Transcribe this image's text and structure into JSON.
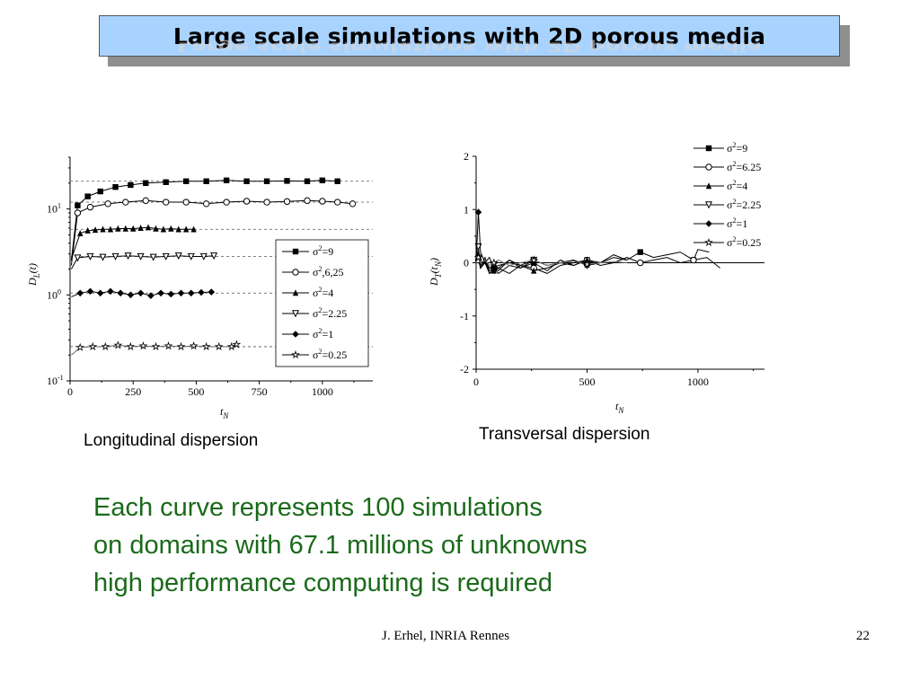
{
  "slide": {
    "title": "Large scale simulations with 2D porous media",
    "title_color": "#a9d3ff",
    "text_color": "#1a6a1a",
    "footer_author": "J. Erhel, INRIA Rennes",
    "page_number": "22",
    "caption_left": "Longitudinal dispersion",
    "caption_right": "Transversal dispersion",
    "lines": [
      "Each curve represents 100 simulations",
      "on domains with 67.1 millions of unknowns",
      "high performance computing is required"
    ]
  },
  "chart_data": [
    {
      "type": "line",
      "yscale": "log",
      "xlim": [
        0,
        1200
      ],
      "ylim": [
        0.1,
        40
      ],
      "xticks": [
        "0",
        "250",
        "500",
        "750",
        "1000"
      ],
      "yticks": [
        {
          "base": "10",
          "exp": "-1",
          "value": 0.1
        },
        {
          "base": "10",
          "exp": "0",
          "value": 1
        },
        {
          "base": "10",
          "exp": "1",
          "value": 10
        }
      ],
      "xlabel": {
        "main": "t",
        "sub": "N"
      },
      "ylabel": {
        "main": "D",
        "sub": "L",
        "arg": "(t)"
      },
      "reference_lines": [
        21,
        12,
        5.8,
        2.8,
        1.05,
        0.25
      ],
      "legend_position": "lower-right",
      "series": [
        {
          "name": "σ²=9",
          "marker": "square",
          "x": [
            5,
            30,
            70,
            120,
            180,
            240,
            300,
            380,
            460,
            540,
            620,
            700,
            780,
            860,
            940,
            1000,
            1060
          ],
          "y": [
            2.5,
            11,
            14,
            16,
            18,
            19,
            20,
            20.5,
            21,
            21,
            21.5,
            21,
            21,
            21.2,
            21,
            21.5,
            21
          ]
        },
        {
          "name": "σ²,6,25",
          "marker": "circle",
          "x": [
            5,
            30,
            80,
            150,
            220,
            300,
            380,
            460,
            540,
            620,
            700,
            780,
            860,
            940,
            1000,
            1060,
            1120
          ],
          "y": [
            2.2,
            9,
            10.5,
            11.5,
            12,
            12.5,
            12,
            12,
            11.5,
            12,
            12.3,
            12,
            12.2,
            12.5,
            12.3,
            12,
            11.5
          ]
        },
        {
          "name": "σ²=4",
          "marker": "triangle",
          "x": [
            5,
            40,
            70,
            100,
            130,
            160,
            190,
            220,
            250,
            280,
            310,
            340,
            370,
            400,
            430,
            460,
            490
          ],
          "y": [
            2.6,
            5.2,
            5.6,
            5.7,
            5.8,
            5.8,
            5.9,
            5.9,
            5.9,
            6.0,
            6.1,
            5.9,
            5.8,
            5.9,
            5.8,
            5.8,
            5.8
          ]
        },
        {
          "name": "σ²=2.25",
          "marker": "triangle-down",
          "x": [
            5,
            30,
            80,
            130,
            180,
            230,
            280,
            330,
            380,
            430,
            480,
            530,
            570
          ],
          "y": [
            2.0,
            2.7,
            2.8,
            2.75,
            2.8,
            2.85,
            2.8,
            2.75,
            2.8,
            2.85,
            2.8,
            2.8,
            2.85
          ]
        },
        {
          "name": "σ²=1",
          "marker": "diamond",
          "x": [
            5,
            40,
            80,
            120,
            160,
            200,
            240,
            280,
            320,
            360,
            400,
            440,
            480,
            520,
            560
          ],
          "y": [
            0.95,
            1.05,
            1.1,
            1.05,
            1.1,
            1.05,
            1.0,
            1.05,
            0.98,
            1.05,
            1.02,
            1.05,
            1.05,
            1.07,
            1.08
          ]
        },
        {
          "name": "σ²=0.25",
          "marker": "star",
          "x": [
            5,
            40,
            90,
            140,
            190,
            240,
            290,
            340,
            390,
            440,
            490,
            540,
            590,
            640,
            660
          ],
          "y": [
            0.2,
            0.245,
            0.25,
            0.25,
            0.26,
            0.25,
            0.255,
            0.25,
            0.255,
            0.25,
            0.255,
            0.25,
            0.25,
            0.25,
            0.265
          ]
        }
      ]
    },
    {
      "type": "line",
      "xlim": [
        0,
        1300
      ],
      "ylim": [
        -2,
        2
      ],
      "xticks": [
        "0",
        "500",
        "1000"
      ],
      "yticks": [
        "2",
        "1",
        "0",
        "-1",
        "-2"
      ],
      "xlabel": {
        "main": "t",
        "sub": "N"
      },
      "ylabel": {
        "main": "D",
        "sub": "T",
        "arg": "(t",
        "arg_sub": "N",
        "arg_close": ")"
      },
      "reference_lines": [
        0
      ],
      "legend_position": "top-right",
      "series": [
        {
          "name": "σ²=9",
          "marker": "square",
          "x": [
            0,
            10,
            20,
            40,
            60,
            80,
            100,
            150,
            200,
            260,
            320,
            380,
            440,
            500,
            560,
            620,
            680,
            740,
            800,
            860,
            920,
            980,
            1000,
            1050
          ],
          "y": [
            0,
            0.1,
            -0.05,
            0.1,
            -0.15,
            -0.1,
            -0.2,
            -0.05,
            -0.1,
            0.0,
            -0.15,
            0.05,
            -0.05,
            0.05,
            0.0,
            0.15,
            0.05,
            0.2,
            0.1,
            0.15,
            0.2,
            0.05,
            0.25,
            0.2
          ]
        },
        {
          "name": "σ²=6.25",
          "marker": "circle",
          "x": [
            0,
            10,
            20,
            40,
            60,
            80,
            100,
            150,
            200,
            260,
            320,
            380,
            440,
            500,
            560,
            620,
            680,
            740,
            800,
            860,
            920,
            980,
            1040,
            1100
          ],
          "y": [
            0,
            0.05,
            -0.1,
            0.0,
            -0.2,
            -0.1,
            -0.15,
            0.05,
            -0.05,
            -0.1,
            -0.2,
            -0.05,
            0.0,
            0.05,
            -0.05,
            0.0,
            0.1,
            0.0,
            0.05,
            0.1,
            0.0,
            0.05,
            0.1,
            -0.1
          ]
        },
        {
          "name": "σ²=4",
          "marker": "triangle",
          "x": [
            0,
            10,
            20,
            40,
            60,
            80,
            100,
            150,
            200,
            260,
            320,
            380,
            440,
            500,
            560,
            620,
            680
          ],
          "y": [
            0,
            0.15,
            -0.1,
            0.05,
            -0.2,
            -0.15,
            -0.1,
            -0.2,
            -0.05,
            -0.15,
            -0.1,
            0.0,
            -0.05,
            0.05,
            0.0,
            0.1,
            0.05
          ]
        },
        {
          "name": "σ²=2.25",
          "marker": "triangle-down",
          "x": [
            0,
            10,
            20,
            40,
            60,
            80,
            100,
            150,
            200,
            260,
            320,
            380,
            440,
            500,
            560
          ],
          "y": [
            0,
            0.3,
            -0.1,
            0.05,
            -0.1,
            -0.05,
            -0.1,
            0.05,
            -0.1,
            0.05,
            -0.05,
            0.0,
            0.05,
            -0.05,
            0.0
          ]
        },
        {
          "name": "σ²=1",
          "marker": "diamond",
          "x": [
            0,
            10,
            20,
            40,
            60,
            80,
            100,
            150,
            200,
            260,
            320,
            380,
            440,
            500,
            560
          ],
          "y": [
            0,
            0.95,
            0.2,
            0.0,
            0.1,
            -0.1,
            -0.05,
            0.0,
            -0.05,
            0.05,
            -0.05,
            0.0,
            0.05,
            -0.05,
            0.0
          ]
        },
        {
          "name": "σ²=0.25",
          "marker": "star",
          "x": [
            0,
            10,
            20,
            40,
            60,
            80,
            100,
            150,
            200,
            260,
            320,
            380,
            440,
            500,
            560,
            620,
            680
          ],
          "y": [
            0,
            0.1,
            0.0,
            0.05,
            -0.05,
            0.0,
            0.05,
            -0.05,
            0.0,
            0.05,
            -0.05,
            0.0,
            0.03,
            -0.03,
            0.0,
            0.02,
            0.0
          ]
        }
      ]
    }
  ]
}
